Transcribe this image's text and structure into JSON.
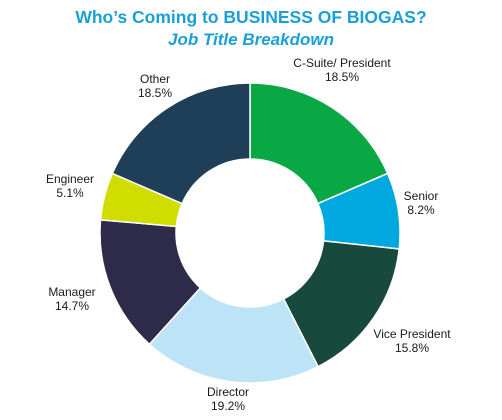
{
  "chart_data": {
    "type": "pie",
    "donut": true,
    "title": "Who’s Coming to BUSINESS OF BIOGAS?",
    "subtitle": "Job Title Breakdown",
    "title_color": "#1aa0d8",
    "start_angle_deg": 0,
    "direction": "clockwise",
    "legend": "none",
    "slices": [
      {
        "label": "C-Suite/ President",
        "value": 18.5,
        "value_label": "18.5%",
        "color": "#0aa845"
      },
      {
        "label": "Senior",
        "value": 8.2,
        "value_label": "8.2%",
        "color": "#00a8e0"
      },
      {
        "label": "Vice President",
        "value": 15.8,
        "value_label": "15.8%",
        "color": "#174a3c"
      },
      {
        "label": "Director",
        "value": 19.2,
        "value_label": "19.2%",
        "color": "#bde3f7"
      },
      {
        "label": "Manager",
        "value": 14.7,
        "value_label": "14.7%",
        "color": "#2e2a4a"
      },
      {
        "label": "Engineer",
        "value": 5.1,
        "value_label": "5.1%",
        "color": "#cfdd00"
      },
      {
        "label": "Other",
        "value": 18.5,
        "value_label": "18.5%",
        "color": "#1e3f57"
      }
    ]
  }
}
